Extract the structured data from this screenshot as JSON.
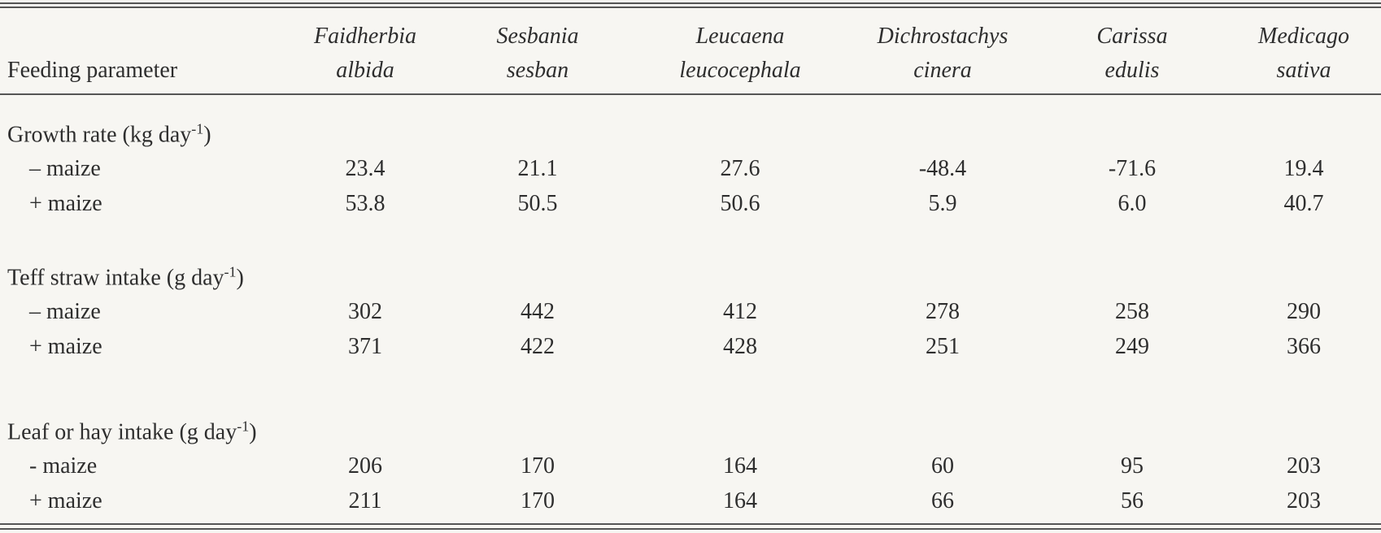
{
  "table": {
    "header": {
      "label": "Feeding parameter",
      "columns": [
        [
          "Faidherbia",
          "albida"
        ],
        [
          "Sesbania",
          "sesban"
        ],
        [
          "Leucaena",
          "leucocephala"
        ],
        [
          "Dichrostachys",
          "cinera"
        ],
        [
          "Carissa",
          "edulis"
        ],
        [
          "Medicago",
          "sativa"
        ]
      ]
    },
    "sections": [
      {
        "title": "Growth rate (kg day",
        "title_sup": "-1",
        "title_end": ")",
        "rows": [
          {
            "label": "– maize",
            "values": [
              "23.4",
              "21.1",
              "27.6",
              "-48.4",
              "-71.6",
              "19.4"
            ]
          },
          {
            "label": "+ maize",
            "values": [
              "53.8",
              "50.5",
              "50.6",
              "5.9",
              "6.0",
              "40.7"
            ]
          }
        ]
      },
      {
        "title": "Teff straw intake (g day",
        "title_sup": "-1",
        "title_end": ")",
        "rows": [
          {
            "label": "– maize",
            "values": [
              "302",
              "442",
              "412",
              "278",
              "258",
              "290"
            ]
          },
          {
            "label": "+ maize",
            "values": [
              "371",
              "422",
              "428",
              "251",
              "249",
              "366"
            ]
          }
        ]
      },
      {
        "title": "Leaf or hay intake (g day",
        "title_sup": "-1",
        "title_end": ")",
        "rows": [
          {
            "label": "- maize",
            "values": [
              "206",
              "170",
              "164",
              "60",
              "95",
              "203"
            ]
          },
          {
            "label": "+ maize",
            "values": [
              "211",
              "170",
              "164",
              "66",
              "56",
              "203"
            ]
          }
        ]
      }
    ]
  }
}
